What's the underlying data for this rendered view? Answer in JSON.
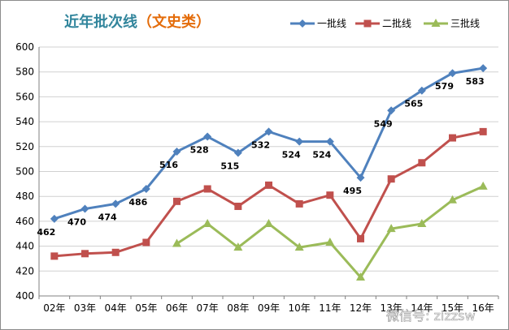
{
  "chart_data": {
    "type": "line",
    "title_main": "近年批次线",
    "title_paren": "（文史类）",
    "colors": {
      "title_main": "#31859C",
      "title_paren": "#E46C0A",
      "grid": "#d0d0d0",
      "axis": "#808080"
    },
    "categories": [
      "02年",
      "03年",
      "04年",
      "05年",
      "06年",
      "07年",
      "08年",
      "09年",
      "10年",
      "11年",
      "12年",
      "13年",
      "14年",
      "15年",
      "16年"
    ],
    "ylim": [
      400,
      600
    ],
    "yticks": [
      400,
      420,
      440,
      460,
      480,
      500,
      520,
      540,
      560,
      580,
      600
    ],
    "grid": true,
    "legend": "top-right",
    "series": [
      {
        "name": "一批线",
        "color": "#4F81BD",
        "marker": "diamond",
        "values": [
          462,
          470,
          474,
          486,
          516,
          528,
          515,
          532,
          524,
          524,
          495,
          549,
          565,
          579,
          583
        ],
        "labels": [
          "462",
          "470",
          "474",
          "486",
          "516",
          "528",
          "515",
          "532",
          "524",
          "524",
          "495",
          "549",
          "565",
          "579",
          "583"
        ]
      },
      {
        "name": "二批线",
        "color": "#C0504D",
        "marker": "square",
        "values": [
          432,
          434,
          435,
          443,
          476,
          486,
          472,
          489,
          474,
          481,
          446,
          494,
          507,
          527,
          532
        ]
      },
      {
        "name": "三批线",
        "color": "#9BBB59",
        "marker": "triangle",
        "values": [
          null,
          null,
          null,
          null,
          442,
          458,
          439,
          458,
          439,
          443,
          415,
          454,
          458,
          477,
          488
        ]
      }
    ]
  },
  "watermark": "微信号: zizzsw"
}
